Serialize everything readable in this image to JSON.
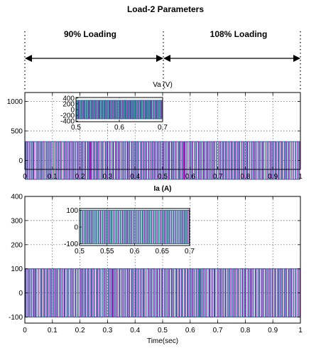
{
  "figure": {
    "title": "Load-2 Parameters",
    "region_left_label": "90% Loading",
    "region_right_label": "108% Loading"
  },
  "colors": {
    "phase_a": "#1a1aa6",
    "phase_b": "#c400c4",
    "phase_c": "#008a80",
    "axis": "#000000",
    "grid": "#555555"
  },
  "chart_data": [
    {
      "type": "line",
      "title": "Va (V)",
      "xlabel": "",
      "ylabel": "",
      "xlim": [
        0,
        1
      ],
      "ylim": [
        -150,
        1150
      ],
      "xticks": [
        0,
        0.1,
        0.2,
        0.3,
        0.4,
        0.5,
        0.6,
        0.7,
        0.8,
        0.9,
        1
      ],
      "xtick_labels": [
        "0",
        "0.1",
        "0.2",
        "0.3",
        "0.4",
        "0.5",
        "0.6",
        "0.7",
        "0.8",
        "0.9",
        "1"
      ],
      "yticks": [
        0,
        500,
        1000
      ],
      "ytick_labels": [
        "0",
        "500",
        "1000"
      ],
      "grid": true,
      "waveform": {
        "shape": "three-phase square-like PWM",
        "amplitude": 320,
        "frequency_hz": 50
      },
      "series": [
        {
          "phase": "a",
          "amplitude": 320
        },
        {
          "phase": "b",
          "amplitude": 320
        },
        {
          "phase": "c",
          "amplitude": 320
        }
      ],
      "inset": {
        "xlim": [
          0.5,
          0.7
        ],
        "ylim": [
          -420,
          420
        ],
        "xticks": [
          0.5,
          0.6,
          0.7
        ],
        "xtick_labels": [
          "0.5",
          "0.6",
          "0.7"
        ],
        "yticks": [
          400,
          200,
          0,
          -200,
          -400
        ],
        "ytick_labels": [
          "400",
          "200",
          "0",
          "-200",
          "-400"
        ],
        "amplitude": 320
      }
    },
    {
      "type": "line",
      "title": "Ia (A)",
      "xlabel": "Time(sec)",
      "ylabel": "",
      "xlim": [
        0,
        1
      ],
      "ylim": [
        -125,
        400
      ],
      "xticks": [
        0,
        0.1,
        0.2,
        0.3,
        0.4,
        0.5,
        0.6,
        0.7,
        0.8,
        0.9,
        1
      ],
      "xtick_labels": [
        "0",
        "0.1",
        "0.2",
        "0.3",
        "0.4",
        "0.5",
        "0.6",
        "0.7",
        "0.8",
        "0.9",
        "1"
      ],
      "yticks": [
        -100,
        0,
        100,
        200,
        300,
        400
      ],
      "ytick_labels": [
        "-100",
        "0",
        "100",
        "200",
        "300",
        "400"
      ],
      "grid": true,
      "waveform": {
        "shape": "three-phase square-like PWM",
        "amplitude": 100,
        "frequency_hz": 50
      },
      "series": [
        {
          "phase": "a",
          "amplitude": 100
        },
        {
          "phase": "b",
          "amplitude": 100
        },
        {
          "phase": "c",
          "amplitude": 100
        }
      ],
      "inset": {
        "xlim": [
          0.5,
          0.7
        ],
        "ylim": [
          -110,
          110
        ],
        "xticks": [
          0.5,
          0.55,
          0.6,
          0.65,
          0.7
        ],
        "xtick_labels": [
          "0.5",
          "0.55",
          "0.6",
          "0.65",
          "0.7"
        ],
        "yticks": [
          100,
          0,
          -100
        ],
        "ytick_labels": [
          "100",
          "0",
          "-100"
        ],
        "amplitude": 100
      }
    }
  ]
}
